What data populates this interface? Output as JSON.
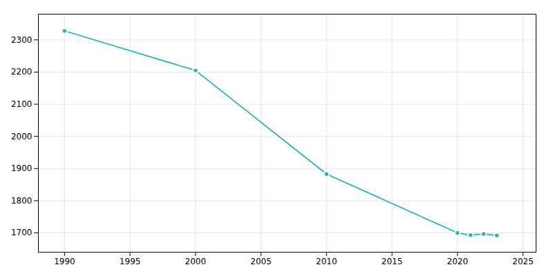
{
  "chart_data": {
    "type": "line",
    "x": [
      1990,
      2000,
      2010,
      2020,
      2021,
      2022,
      2023
    ],
    "values": [
      2328,
      2205,
      1883,
      1700,
      1693,
      1697,
      1692
    ],
    "color": "#2ab5b5",
    "marker": "circle",
    "xlim": [
      1988,
      2026
    ],
    "ylim": [
      1640,
      2380
    ],
    "xticks": [
      1990,
      1995,
      2000,
      2005,
      2010,
      2015,
      2020,
      2025
    ],
    "yticks": [
      1700,
      1800,
      1900,
      2000,
      2100,
      2200,
      2300
    ],
    "grid": true
  }
}
